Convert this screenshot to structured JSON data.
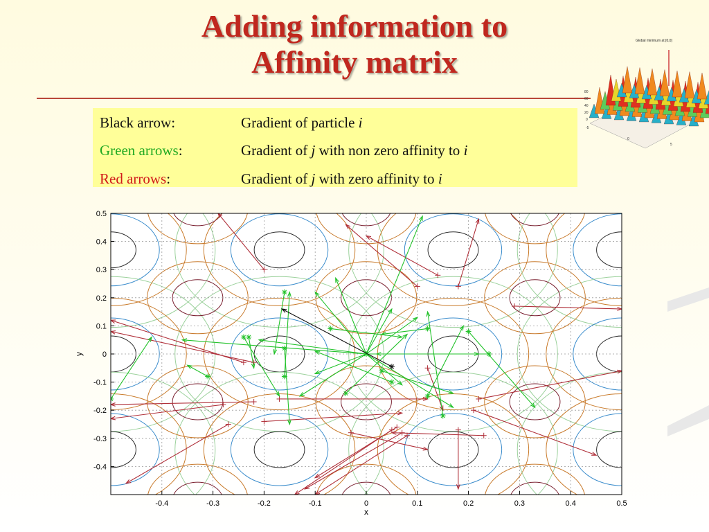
{
  "slide": {
    "title_line1": "Adding information to",
    "title_line2": "Affinity matrix"
  },
  "legend": {
    "rows": [
      {
        "label": "Black arrow:",
        "label_color": "#111111",
        "desc_pre": "Gradient of  particle ",
        "var1": "i",
        "desc_mid": "",
        "var2": ""
      },
      {
        "label": "Green arrows",
        "label_suffix": ":",
        "label_color": "#22aa22",
        "desc_pre": "Gradient of  ",
        "var1": "j",
        "desc_mid": " with non zero affinity to ",
        "var2": "i"
      },
      {
        "label": "Red arrows",
        "label_suffix": ":",
        "label_color": "#d11a1a",
        "desc_pre": "Gradient of  ",
        "var1": "j",
        "desc_mid": " with  zero affinity to ",
        "var2": "i"
      }
    ]
  },
  "thumbnail": {
    "title": "Global minimum at [0,0]"
  },
  "chart_data": {
    "type": "scatter",
    "xlabel": "x",
    "ylabel": "y",
    "xlim": [
      -0.5,
      0.5
    ],
    "ylim": [
      -0.5,
      0.5
    ],
    "grid": true,
    "x_ticks": [
      "-0.4",
      "-0.3",
      "-0.2",
      "-0.1",
      "0",
      "0.1",
      "0.2",
      "0.3",
      "0.4",
      "0.5"
    ],
    "y_ticks": [
      "0.5",
      "0.4",
      "0.3",
      "0.2",
      "0.1",
      "0",
      "-0.1",
      "-0.2",
      "-0.3",
      "-0.4"
    ],
    "black_arrow": {
      "from": [
        0.05,
        -0.045
      ],
      "to": [
        -0.165,
        0.16
      ]
    },
    "green_arrows": [
      {
        "from": [
          0.0,
          0.0
        ],
        "to": [
          0.11,
          0.49
        ]
      },
      {
        "from": [
          0.0,
          0.0
        ],
        "to": [
          -0.06,
          0.27
        ]
      },
      {
        "from": [
          0.0,
          0.0
        ],
        "to": [
          -0.1,
          0.22
        ]
      },
      {
        "from": [
          0.0,
          0.0
        ],
        "to": [
          0.05,
          0.16
        ]
      },
      {
        "from": [
          0.0,
          0.0
        ],
        "to": [
          0.1,
          0.13
        ]
      },
      {
        "from": [
          0.0,
          0.0
        ],
        "to": [
          0.22,
          0.0
        ]
      },
      {
        "from": [
          0.0,
          0.0
        ],
        "to": [
          0.17,
          -0.19
        ]
      },
      {
        "from": [
          0.0,
          0.0
        ],
        "to": [
          0.07,
          -0.11
        ]
      },
      {
        "from": [
          0.0,
          0.0
        ],
        "to": [
          -0.13,
          -0.15
        ]
      },
      {
        "from": [
          0.0,
          0.0
        ],
        "to": [
          -0.21,
          0.05
        ]
      },
      {
        "from": [
          0.0,
          0.0
        ],
        "to": [
          -0.36,
          0.05
        ]
      },
      {
        "from": [
          0.0,
          0.0
        ],
        "to": [
          -0.1,
          -0.07
        ]
      },
      {
        "from": [
          -0.16,
          0.22
        ],
        "to": [
          -0.18,
          0.0
        ]
      },
      {
        "from": [
          -0.16,
          -0.08
        ],
        "to": [
          -0.15,
          0.22
        ]
      },
      {
        "from": [
          -0.16,
          0.02
        ],
        "to": [
          -0.15,
          -0.25
        ]
      },
      {
        "from": [
          0.12,
          0.09
        ],
        "to": [
          0.03,
          0.07
        ]
      },
      {
        "from": [
          0.12,
          -0.15
        ],
        "to": [
          0.19,
          0.1
        ]
      },
      {
        "from": [
          -0.04,
          -0.14
        ],
        "to": [
          0.08,
          0.07
        ]
      },
      {
        "from": [
          0.24,
          0.0
        ],
        "to": [
          0.02,
          0.0
        ]
      },
      {
        "from": [
          0.03,
          -0.06
        ],
        "to": [
          0.17,
          -0.14
        ]
      },
      {
        "from": [
          -0.23,
          0.06
        ],
        "to": [
          -0.22,
          -0.05
        ]
      },
      {
        "from": [
          -0.07,
          0.09
        ],
        "to": [
          0.07,
          0.06
        ]
      },
      {
        "from": [
          0.2,
          0.08
        ],
        "to": [
          0.33,
          -0.19
        ]
      },
      {
        "from": [
          0.05,
          -0.1
        ],
        "to": [
          -0.1,
          0.01
        ]
      },
      {
        "from": [
          -0.31,
          -0.08
        ],
        "to": [
          -0.35,
          -0.04
        ]
      },
      {
        "from": [
          0.15,
          -0.22
        ],
        "to": [
          0.12,
          0.15
        ]
      },
      {
        "from": [
          -0.5,
          -0.16
        ],
        "to": [
          -0.42,
          0.06
        ]
      },
      {
        "from": [
          -0.24,
          0.06
        ],
        "to": [
          -0.17,
          -0.15
        ]
      }
    ],
    "red_arrows": [
      {
        "from": [
          -0.2,
          0.3
        ],
        "to": [
          -0.29,
          0.5
        ]
      },
      {
        "from": [
          0.1,
          0.24
        ],
        "to": [
          -0.04,
          0.46
        ]
      },
      {
        "from": [
          0.14,
          0.28
        ],
        "to": [
          0.0,
          0.42
        ]
      },
      {
        "from": [
          0.18,
          0.24
        ],
        "to": [
          0.22,
          0.48
        ]
      },
      {
        "from": [
          0.29,
          0.17
        ],
        "to": [
          0.5,
          0.16
        ]
      },
      {
        "from": [
          -0.24,
          -0.03
        ],
        "to": [
          -0.5,
          0.12
        ]
      },
      {
        "from": [
          -0.22,
          -0.03
        ],
        "to": [
          -0.5,
          0.08
        ]
      },
      {
        "from": [
          -0.28,
          -0.18
        ],
        "to": [
          -0.5,
          -0.23
        ]
      },
      {
        "from": [
          -0.22,
          -0.17
        ],
        "to": [
          -0.5,
          -0.18
        ]
      },
      {
        "from": [
          -0.27,
          -0.25
        ],
        "to": [
          -0.47,
          -0.46
        ]
      },
      {
        "from": [
          -0.17,
          -0.16
        ],
        "to": [
          0.12,
          -0.16
        ]
      },
      {
        "from": [
          -0.2,
          -0.24
        ],
        "to": [
          0.07,
          -0.21
        ]
      },
      {
        "from": [
          0.12,
          -0.05
        ],
        "to": [
          0.15,
          -0.2
        ]
      },
      {
        "from": [
          0.22,
          -0.16
        ],
        "to": [
          0.5,
          -0.06
        ]
      },
      {
        "from": [
          0.21,
          -0.2
        ],
        "to": [
          0.45,
          -0.36
        ]
      },
      {
        "from": [
          0.23,
          -0.29
        ],
        "to": [
          0.05,
          -0.28
        ]
      },
      {
        "from": [
          0.18,
          -0.27
        ],
        "to": [
          0.18,
          -0.48
        ]
      },
      {
        "from": [
          -0.03,
          -0.28
        ],
        "to": [
          0.12,
          -0.34
        ]
      },
      {
        "from": [
          0.06,
          -0.26
        ],
        "to": [
          -0.1,
          -0.44
        ]
      },
      {
        "from": [
          0.07,
          -0.28
        ],
        "to": [
          -0.12,
          -0.48
        ]
      },
      {
        "from": [
          0.05,
          -0.27
        ],
        "to": [
          -0.14,
          -0.5
        ]
      },
      {
        "from": [
          0.08,
          -0.29
        ],
        "to": [
          -0.1,
          -0.5
        ]
      }
    ]
  }
}
